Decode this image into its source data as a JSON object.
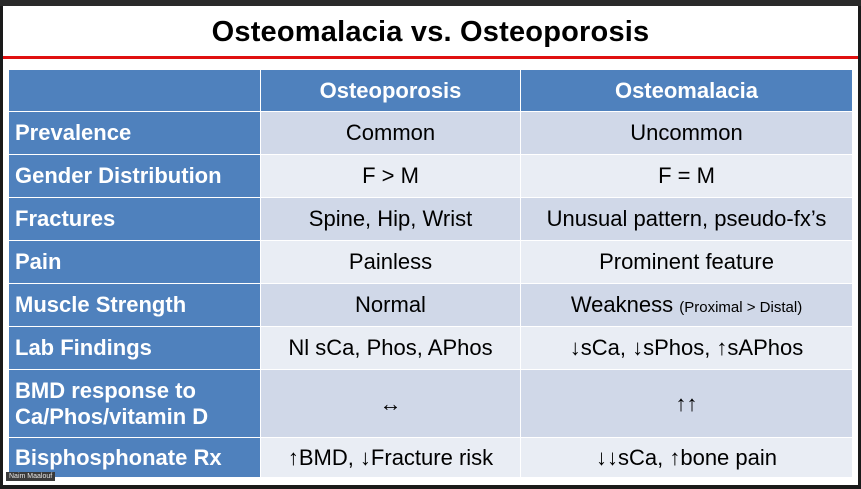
{
  "slide": {
    "title": "Osteomalacia vs. Osteoporosis",
    "columns": [
      "",
      "Osteoporosis",
      "Osteomalacia"
    ],
    "rows": [
      {
        "label": "Prevalence",
        "osteoporosis": "Common",
        "osteomalacia": "Uncommon",
        "osteomalacia_note": ""
      },
      {
        "label": "Gender Distribution",
        "osteoporosis": "F > M",
        "osteomalacia": "F = M",
        "osteomalacia_note": ""
      },
      {
        "label": "Fractures",
        "osteoporosis": "Spine, Hip, Wrist",
        "osteomalacia": "Unusual pattern, pseudo-fx’s",
        "osteomalacia_note": ""
      },
      {
        "label": "Pain",
        "osteoporosis": "Painless",
        "osteomalacia": "Prominent feature",
        "osteomalacia_note": ""
      },
      {
        "label": "Muscle Strength",
        "osteoporosis": "Normal",
        "osteomalacia": "Weakness",
        "osteomalacia_note": "(Proximal > Distal)"
      },
      {
        "label": "Lab Findings",
        "osteoporosis": "Nl sCa, Phos, APhos",
        "osteomalacia": "↓sCa, ↓sPhos, ↑sAPhos",
        "osteomalacia_note": ""
      },
      {
        "label": "BMD response to Ca/Phos/vitamin D",
        "osteoporosis": "↔",
        "osteomalacia": "↑↑",
        "osteomalacia_note": ""
      },
      {
        "label": "Bisphosphonate Rx",
        "osteoporosis": "↑BMD, ↓Fracture risk",
        "osteomalacia": "↓↓sCa, ↑bone pain",
        "osteomalacia_note": ""
      }
    ]
  },
  "participant": {
    "name": "Naim Maalouf"
  },
  "colors": {
    "header_blue": "#4f81bd",
    "row_dark": "#d0d8e8",
    "row_light": "#e9edf4",
    "title_underline": "#e01010"
  }
}
